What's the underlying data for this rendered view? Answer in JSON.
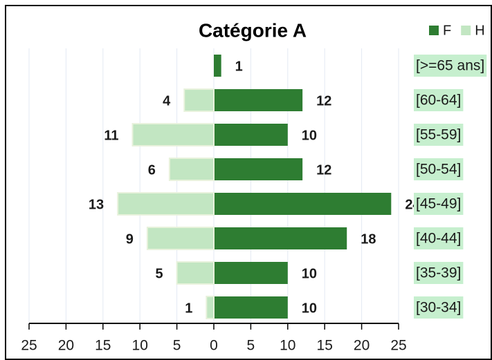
{
  "chart_data": {
    "type": "pyramid",
    "title": "Catégorie A",
    "categories": [
      "[>=65 ans]",
      "[60-64]",
      "[55-59]",
      "[50-54]",
      "[45-49]",
      "[40-44]",
      "[35-39]",
      "[30-34]"
    ],
    "series": [
      {
        "name": "F",
        "color": "#2e7d32",
        "side": "right",
        "values": [
          1,
          12,
          10,
          12,
          24,
          18,
          10,
          10
        ]
      },
      {
        "name": "H",
        "color": "#c2e6c2",
        "side": "left",
        "values": [
          null,
          4,
          11,
          6,
          13,
          9,
          5,
          1
        ]
      }
    ],
    "xlim": [
      -25,
      25
    ],
    "xticks": [
      {
        "value": -25,
        "label": "25"
      },
      {
        "value": -20,
        "label": "20"
      },
      {
        "value": -15,
        "label": "15"
      },
      {
        "value": -10,
        "label": "10"
      },
      {
        "value": -5,
        "label": "5"
      },
      0,
      5,
      10,
      15,
      20,
      25
    ],
    "grid": true,
    "legend": "top-right"
  }
}
